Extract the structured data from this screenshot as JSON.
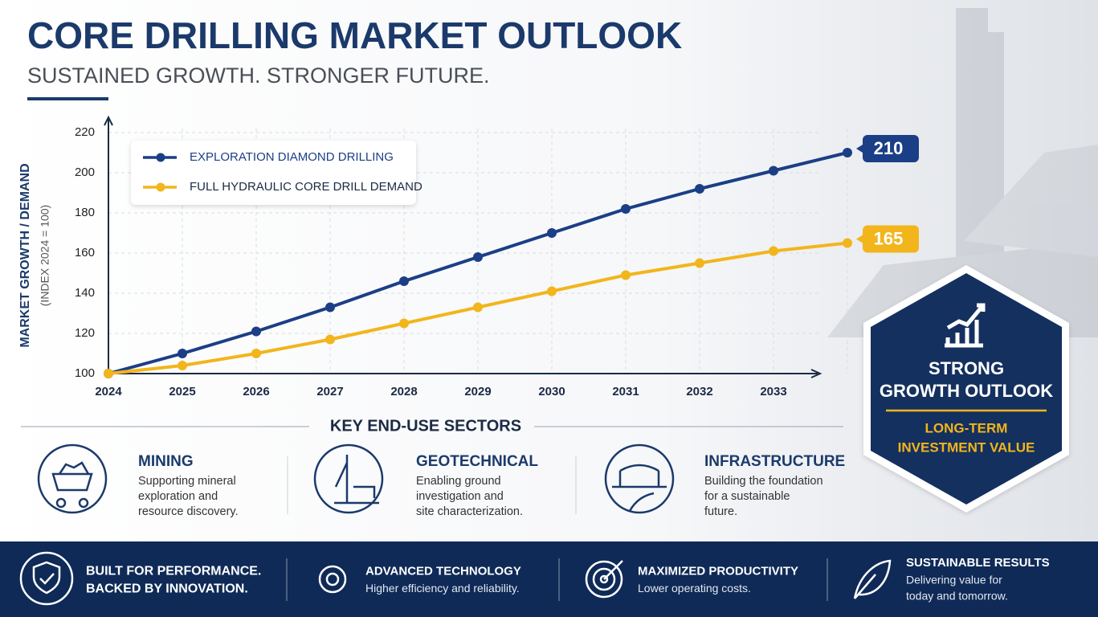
{
  "header": {
    "title": "CORE DRILLING MARKET OUTLOOK",
    "subtitle": "SUSTAINED GROWTH. STRONGER FUTURE."
  },
  "chart_data": {
    "type": "line",
    "y_label": "MARKET GROWTH / DEMAND",
    "y_sublabel": "(INDEX 2024 = 100)",
    "categories": [
      "2024",
      "2025",
      "2026",
      "2027",
      "2028",
      "2029",
      "2030",
      "2031",
      "2032",
      "2033",
      null
    ],
    "series": [
      {
        "name": "EXPLORATION DIAMOND DRILLING",
        "color": "#1b3f86",
        "values": [
          100,
          110,
          121,
          133,
          146,
          158,
          170,
          182,
          192,
          201,
          210
        ]
      },
      {
        "name": "FULL HYDRAULIC CORE DRILL DEMAND",
        "color": "#f2b51c",
        "values": [
          100,
          104,
          110,
          117,
          125,
          133,
          141,
          149,
          155,
          161,
          165
        ]
      }
    ],
    "ylim": [
      100,
      220
    ],
    "yticks": [
      100,
      120,
      140,
      160,
      180,
      200,
      220
    ],
    "grid": true,
    "legend": "top-left"
  },
  "sectors": {
    "title": "KEY END-USE SECTORS",
    "items": [
      {
        "name": "MINING",
        "description": [
          "Supporting mineral",
          "exploration and",
          "resource discovery."
        ]
      },
      {
        "name": "GEOTECHNICAL",
        "description": [
          "Enabling ground",
          "investigation and",
          "site characterization."
        ]
      },
      {
        "name": "INFRASTRUCTURE",
        "description": [
          "Building the foundation",
          "for a sustainable",
          "future."
        ]
      }
    ]
  },
  "badge": {
    "title": [
      "STRONG",
      "GROWTH OUTLOOK"
    ],
    "subtitle": [
      "LONG-TERM",
      "INVESTMENT VALUE"
    ]
  },
  "footer": [
    {
      "title": [
        "BUILT FOR PERFORMANCE.",
        "BACKED BY INNOVATION."
      ]
    },
    {
      "title": [
        "ADVANCED TECHNOLOGY"
      ],
      "description": [
        "Higher efficiency and reliability."
      ]
    },
    {
      "title": [
        "MAXIMIZED PRODUCTIVITY"
      ],
      "description": [
        "Lower operating costs."
      ]
    },
    {
      "title": [
        "SUSTAINABLE RESULTS"
      ],
      "description": [
        "Delivering value for",
        "today and tomorrow."
      ]
    }
  ]
}
